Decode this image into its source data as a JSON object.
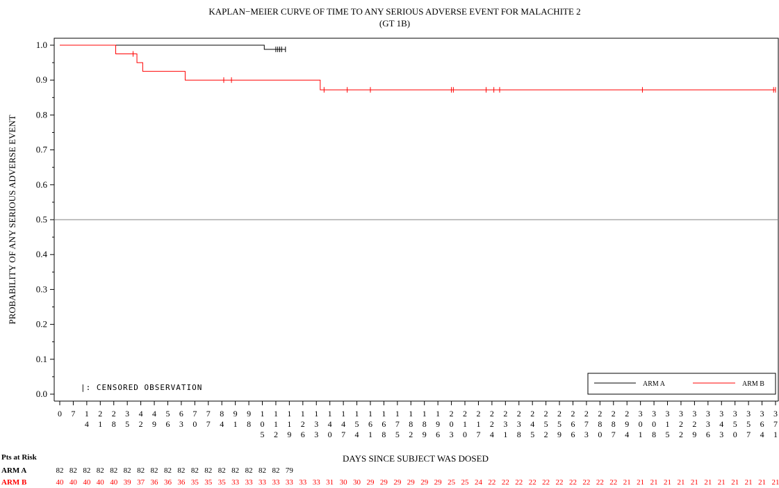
{
  "chart_data": {
    "type": "line",
    "title": "KAPLAN−MEIER CURVE OF TIME TO ANY SERIOUS ADVERSE EVENT FOR MALACHITE 2",
    "subtitle": "(GT 1B)",
    "xlabel": "DAYS SINCE SUBJECT WAS DOSED",
    "ylabel": "PROBABILITY OF ANY SERIOUS ADVERSE EVENT",
    "xlim": [
      0,
      371
    ],
    "ylim": [
      0,
      1.0
    ],
    "x_ticks": [
      0,
      7,
      14,
      21,
      28,
      35,
      42,
      49,
      56,
      63,
      70,
      77,
      84,
      91,
      98,
      105,
      112,
      119,
      126,
      133,
      140,
      147,
      154,
      161,
      168,
      175,
      182,
      189,
      196,
      203,
      210,
      217,
      224,
      231,
      238,
      245,
      252,
      259,
      266,
      273,
      280,
      287,
      294,
      301,
      308,
      315,
      322,
      329,
      336,
      343,
      350,
      357,
      364,
      371
    ],
    "y_ticks": [
      "0.0",
      "0.1",
      "0.2",
      "0.3",
      "0.4",
      "0.5",
      "0.6",
      "0.7",
      "0.8",
      "0.9",
      "1.0"
    ],
    "reference_line_y": 0.5,
    "note": "|: CENSORED OBSERVATION",
    "legend_position": "bottom-right",
    "series": [
      {
        "name": "ARM A",
        "color": "#000000",
        "steps": [
          [
            0,
            1.0
          ],
          [
            106,
            0.988
          ],
          [
            117,
            0.988
          ]
        ],
        "censored": [
          [
            112,
            0.988
          ],
          [
            113,
            0.988
          ],
          [
            114,
            0.988
          ],
          [
            115,
            0.988
          ],
          [
            117,
            0.988
          ]
        ]
      },
      {
        "name": "ARM B",
        "color": "#ff0000",
        "steps": [
          [
            0,
            1.0
          ],
          [
            29,
            0.975
          ],
          [
            40,
            0.95
          ],
          [
            43,
            0.925
          ],
          [
            65,
            0.9
          ],
          [
            135,
            0.872
          ],
          [
            371,
            0.872
          ]
        ],
        "censored": [
          [
            38,
            0.975
          ],
          [
            85,
            0.9
          ],
          [
            89,
            0.9
          ],
          [
            137,
            0.872
          ],
          [
            149,
            0.872
          ],
          [
            161,
            0.872
          ],
          [
            203,
            0.872
          ],
          [
            204,
            0.872
          ],
          [
            221,
            0.872
          ],
          [
            225,
            0.872
          ],
          [
            228,
            0.872
          ],
          [
            302,
            0.872
          ],
          [
            370,
            0.872
          ],
          [
            371,
            0.872
          ]
        ]
      }
    ],
    "risk_table": {
      "header": "Pts at Risk",
      "rows": [
        {
          "label": "ARM A",
          "color": "#000000",
          "values": [
            "82",
            "82",
            "82",
            "82",
            "82",
            "82",
            "82",
            "82",
            "82",
            "82",
            "82",
            "82",
            "82",
            "82",
            "82",
            "82",
            "82",
            "79"
          ]
        },
        {
          "label": "ARM B",
          "color": "#ff0000",
          "values": [
            "40",
            "40",
            "40",
            "40",
            "40",
            "39",
            "37",
            "36",
            "36",
            "36",
            "35",
            "35",
            "35",
            "33",
            "33",
            "33",
            "33",
            "33",
            "33",
            "33",
            "31",
            "30",
            "30",
            "29",
            "29",
            "29",
            "29",
            "29",
            "29",
            "25",
            "25",
            "24",
            "22",
            "22",
            "22",
            "22",
            "22",
            "22",
            "22",
            "22",
            "22",
            "22",
            "21",
            "21",
            "21",
            "21",
            "21",
            "21",
            "21",
            "21",
            "21",
            "21",
            "21",
            "21"
          ]
        }
      ]
    }
  }
}
